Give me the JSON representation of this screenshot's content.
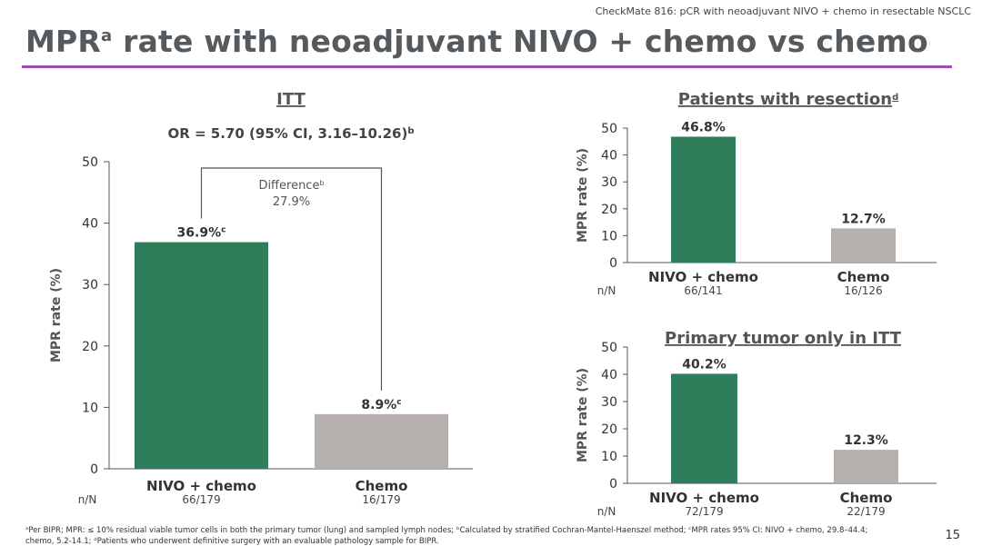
{
  "header_note": "CheckMate 816: pCR with neoadjuvant NIVO + chemo in resectable NSCLC",
  "title": {
    "main": "MPR",
    "sup": "a",
    "rest": " rate with neoadjuvant NIVO + chemo vs chemo"
  },
  "footnote": {
    "line1": "ᵃPer BIPR; MPR: ≤ 10% residual viable tumor cells in both the primary tumor (lung) and sampled lymph nodes; ᵇCalculated by stratified Cochran-Mantel-Haenszel method; ᶜMPR rates 95% CI: NIVO + chemo, 29.8–44.4;",
    "line2": "chemo, 5.2-14.1; ᵈPatients who underwent definitive surgery with an evaluable pathology sample for BIPR."
  },
  "page_number": "15",
  "colors": {
    "nivo": "#2e7d5b",
    "chemo": "#b5b0ae",
    "accent": "#a04fb4"
  },
  "chart_data": [
    {
      "id": "itt",
      "type": "bar",
      "title": "ITT",
      "or_prefix": "OR = 5.70 (95% CI, 3.16–10.26)",
      "or_sup": "b",
      "ylabel": "MPR rate (%)",
      "ylim": [
        0,
        50
      ],
      "yticks": [
        0,
        10,
        20,
        30,
        40,
        50
      ],
      "categories": [
        "NIVO + chemo",
        "Chemo"
      ],
      "values": [
        36.9,
        8.9
      ],
      "value_labels": [
        "36.9%",
        "8.9%"
      ],
      "value_sup": [
        "c",
        "c"
      ],
      "nN_label": "n/N",
      "nN": [
        "66/179",
        "16/179"
      ],
      "difference": {
        "label": "Difference",
        "sup": "b",
        "value": "27.9%"
      }
    },
    {
      "id": "resection",
      "type": "bar",
      "title": "Patients with resection",
      "title_sup": "d",
      "ylabel": "MPR rate (%)",
      "ylim": [
        0,
        50
      ],
      "yticks": [
        0,
        10,
        20,
        30,
        40,
        50
      ],
      "categories": [
        "NIVO + chemo",
        "Chemo"
      ],
      "values": [
        46.8,
        12.7
      ],
      "value_labels": [
        "46.8%",
        "12.7%"
      ],
      "nN_label": "n/N",
      "nN": [
        "66/141",
        "16/126"
      ]
    },
    {
      "id": "primary",
      "type": "bar",
      "title": "Primary tumor only in ITT",
      "ylabel": "MPR rate (%)",
      "ylim": [
        0,
        50
      ],
      "yticks": [
        0,
        10,
        20,
        30,
        40,
        50
      ],
      "categories": [
        "NIVO + chemo",
        "Chemo"
      ],
      "values": [
        40.2,
        12.3
      ],
      "value_labels": [
        "40.2%",
        "12.3%"
      ],
      "nN_label": "n/N",
      "nN": [
        "72/179",
        "22/179"
      ]
    }
  ]
}
